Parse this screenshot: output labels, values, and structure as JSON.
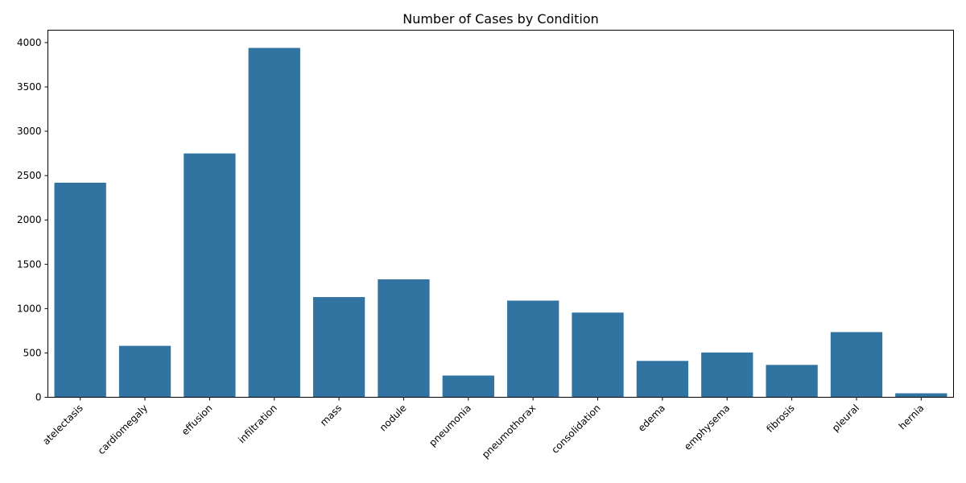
{
  "chart_data": {
    "type": "bar",
    "title": "Number of Cases by Condition",
    "xlabel": "",
    "ylabel": "",
    "categories": [
      "atelectasis",
      "cardiomegaly",
      "effusion",
      "infiltration",
      "mass",
      "nodule",
      "pneumonia",
      "pneumothorax",
      "consolidation",
      "edema",
      "emphysema",
      "fibrosis",
      "pleural",
      "hernia"
    ],
    "values": [
      2420,
      580,
      2750,
      3940,
      1130,
      1330,
      245,
      1090,
      955,
      410,
      505,
      365,
      735,
      45
    ],
    "ylim": [
      0,
      4140
    ],
    "yticks": [
      0,
      500,
      1000,
      1500,
      2000,
      2500,
      3000,
      3500,
      4000
    ],
    "bar_color": "#3274a1",
    "grid": false,
    "legend": "none"
  }
}
